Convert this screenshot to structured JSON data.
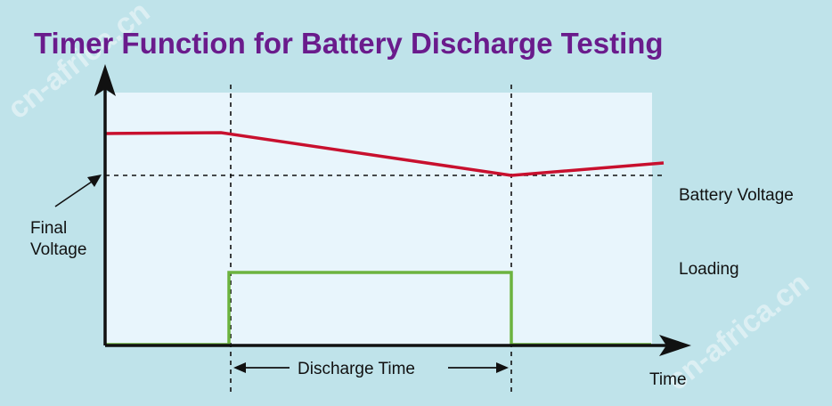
{
  "title": "Timer Function for Battery Discharge Testing",
  "labels": {
    "final_voltage_line1": "Final",
    "final_voltage_line2": "Voltage",
    "battery_voltage": "Battery Voltage",
    "loading": "Loading",
    "discharge_time": "Discharge Time",
    "time_axis": "Time"
  },
  "watermarks": [
    "cn-africa.cn",
    "cn-africa.cn"
  ],
  "colors": {
    "background": "#bfe3ea",
    "plot_area": "#e8f5fc",
    "title": "#6a1b8c",
    "voltage_curve": "#c8102e",
    "loading_curve": "#6cb33f",
    "axes": "#111111"
  }
}
